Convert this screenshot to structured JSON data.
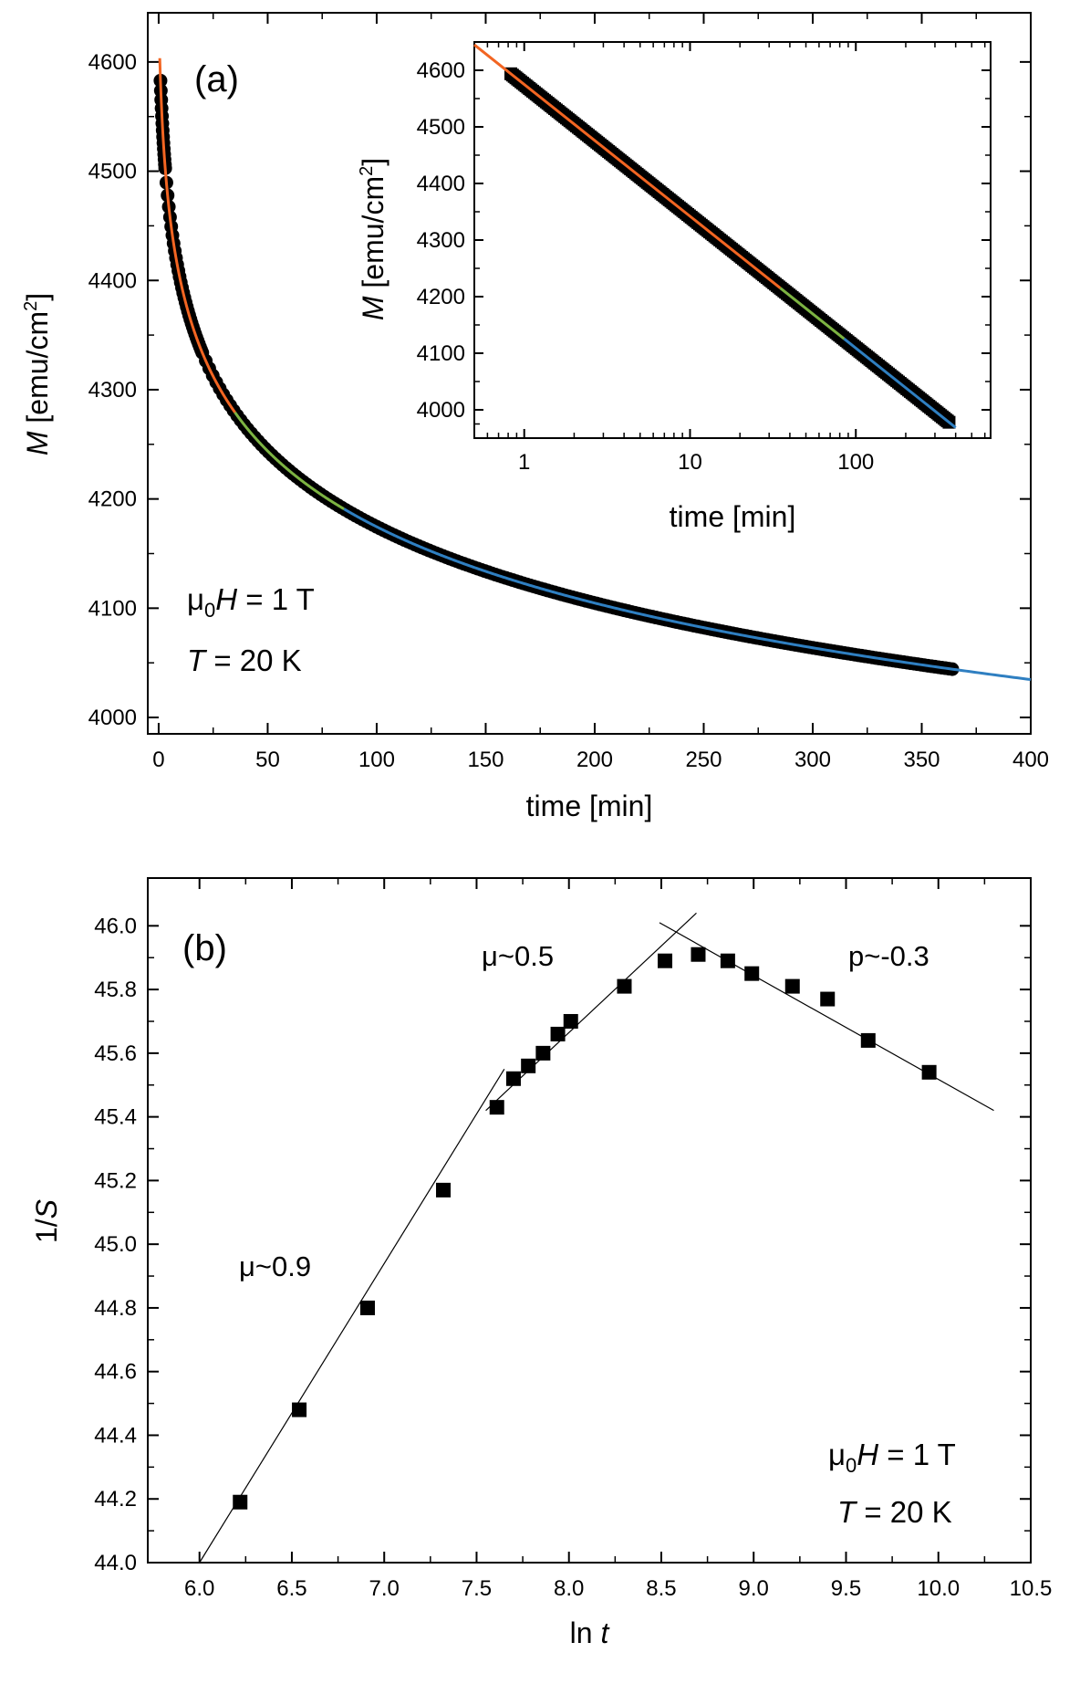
{
  "chart_data": [
    {
      "type": "scatter",
      "panel_label": "(a)",
      "xlabel": "time [min]",
      "ylabel": {
        "italic": "M",
        "rest": " [emu/cm",
        "sup": "2",
        "close": "]"
      },
      "xlim": [
        -5,
        400
      ],
      "ylim": [
        3985,
        4645
      ],
      "x_ticks": [
        0,
        50,
        100,
        150,
        200,
        250,
        300,
        350,
        400
      ],
      "y_ticks": [
        4000,
        4100,
        4200,
        4300,
        4400,
        4500,
        4600
      ],
      "grid": false,
      "annotations": {
        "field_mu": "μ",
        "field_sub": "0",
        "field_H": "H",
        "field_rest": " = 1 T",
        "temp_T": "T",
        "temp_rest": " = 20 K"
      },
      "model": {
        "M0": 4642.5,
        "slope": 233.5,
        "t0": 0.97,
        "units_note": ""
      },
      "series": [
        {
          "role": "data",
          "color": "#000000",
          "t_range": [
            0.83,
            365
          ]
        },
        {
          "role": "fit",
          "color": "#f26522",
          "t_range": [
            0.5,
            35
          ]
        },
        {
          "role": "fit",
          "color": "#7cb342",
          "t_range": [
            35,
            85
          ]
        },
        {
          "role": "fit",
          "color": "#2f7fc1",
          "t_range": [
            85,
            400
          ]
        }
      ],
      "inset": {
        "type": "scatter",
        "xlabel": "time [min]",
        "ylabel": {
          "italic": "M",
          "rest": " [emu/cm",
          "sup": "2",
          "close": "]"
        },
        "xscale": "log",
        "xlim": [
          0.5,
          650
        ],
        "ylim": [
          3950,
          4650
        ],
        "x_ticks": [
          1,
          10,
          100
        ],
        "y_ticks": [
          4000,
          4100,
          4200,
          4300,
          4400,
          4500,
          4600
        ]
      }
    },
    {
      "type": "scatter",
      "panel_label": "(b)",
      "xlabel": {
        "plain": "ln ",
        "italic": "t"
      },
      "ylabel": {
        "plain": "1/",
        "italic": "S"
      },
      "xlim": [
        5.72,
        10.5
      ],
      "ylim": [
        44.0,
        46.15
      ],
      "x_ticks": [
        6.0,
        6.5,
        7.0,
        7.5,
        8.0,
        8.5,
        9.0,
        9.5,
        10.0,
        10.5
      ],
      "y_ticks": [
        44.0,
        44.2,
        44.4,
        44.6,
        44.8,
        45.0,
        45.2,
        45.4,
        45.6,
        45.8,
        46.0
      ],
      "grid": false,
      "x": [
        6.22,
        6.54,
        6.91,
        7.32,
        7.61,
        7.7,
        7.78,
        7.86,
        7.94,
        8.01,
        8.3,
        8.52,
        8.7,
        8.86,
        8.99,
        9.21,
        9.4,
        9.62,
        9.95
      ],
      "y": [
        44.19,
        44.48,
        44.8,
        45.17,
        45.43,
        45.52,
        45.56,
        45.6,
        45.66,
        45.7,
        45.81,
        45.89,
        45.91,
        45.89,
        45.85,
        45.81,
        45.77,
        45.64,
        45.54
      ],
      "fit_lines": [
        {
          "name": "μ~0.9",
          "x": [
            6.0,
            7.65
          ],
          "y": [
            44.0,
            45.55
          ]
        },
        {
          "name": "μ~0.5",
          "x": [
            7.55,
            8.69
          ],
          "y": [
            45.42,
            46.04
          ]
        },
        {
          "name": "p~-0.3",
          "x": [
            8.49,
            10.3
          ],
          "y": [
            46.01,
            45.42
          ]
        }
      ],
      "annotations": {
        "mu09": "μ~0.9",
        "mu05": "μ~0.5",
        "p03": "p~-0.3",
        "field_mu": "μ",
        "field_sub": "0",
        "field_H": "H",
        "field_rest": " = 1 T",
        "temp_T": "T",
        "temp_rest": " = 20 K"
      }
    }
  ]
}
